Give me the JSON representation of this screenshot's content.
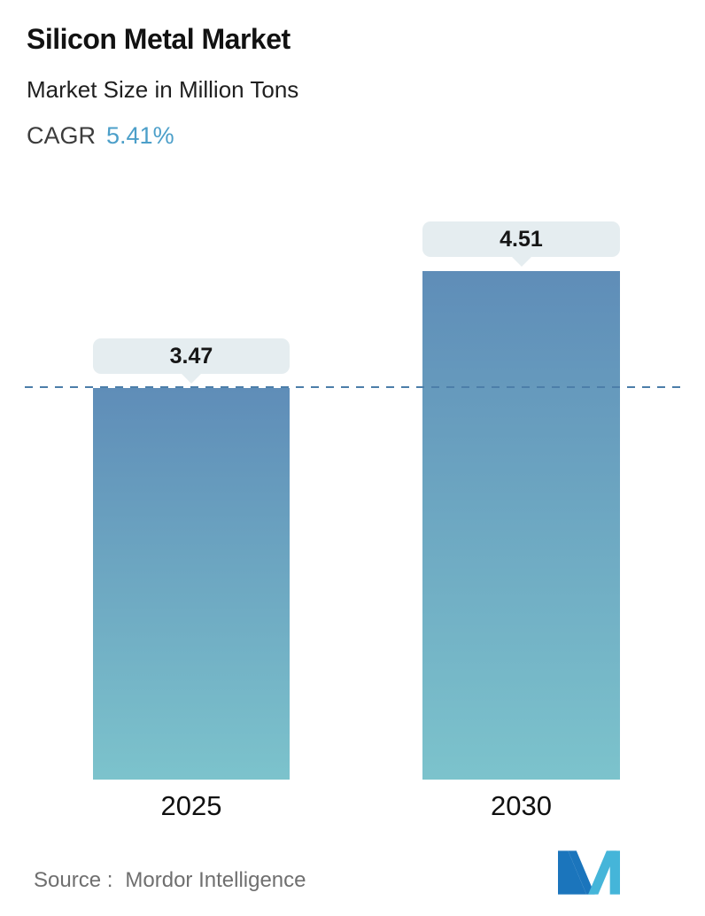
{
  "header": {
    "title": "Silicon Metal Market",
    "subtitle": "Market Size in Million Tons",
    "cagr_label": "CAGR",
    "cagr_value": "5.41%"
  },
  "chart_data": {
    "type": "bar",
    "title": "Silicon Metal Market",
    "subtitle": "Market Size in Million Tons",
    "unit": "Million Tons",
    "cagr": "5.41%",
    "categories": [
      "2025",
      "2030"
    ],
    "values": [
      3.47,
      4.51
    ],
    "value_labels": [
      "3.47",
      "4.51"
    ],
    "ylim": [
      0,
      4.51
    ],
    "grid": false,
    "legend": "none",
    "reference_line": {
      "value": 3.47,
      "style": "dashed"
    }
  },
  "footer": {
    "source_label": "Source :",
    "source_value": "Mordor Intelligence"
  },
  "colors": {
    "accent_blue": "#4c9fc9",
    "dashed_line": "#4c7ea9",
    "pill_bg": "#e5edf0",
    "bar_top": "#5f8db8",
    "bar_bottom": "#7cc3cc",
    "logo_dark": "#1b75bc",
    "logo_light": "#45b5d9"
  }
}
